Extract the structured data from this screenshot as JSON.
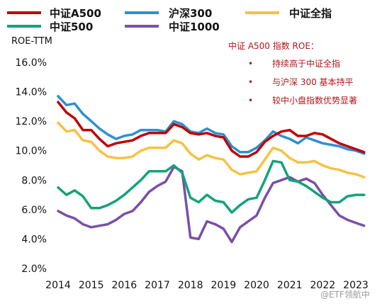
{
  "chart_data": {
    "type": "line",
    "ylabel": "ROE-TTM",
    "ylim": [
      2.0,
      16.0
    ],
    "yticks": [
      "2.0%",
      "4.0%",
      "6.0%",
      "8.0%",
      "10.0%",
      "12.0%",
      "14.0%",
      "16.0%"
    ],
    "ytick_values": [
      2,
      4,
      6,
      8,
      10,
      12,
      14,
      16
    ],
    "xlim": [
      2014,
      2023.35
    ],
    "xticks": [
      "2014",
      "2015",
      "2016",
      "2017",
      "2018",
      "2019",
      "2020",
      "2021",
      "2022",
      "2023"
    ],
    "xtick_values": [
      2014,
      2015,
      2016,
      2017,
      2018,
      2019,
      2020,
      2021,
      2022,
      2023
    ],
    "grid": false,
    "legend_position": "top",
    "series": [
      {
        "name": "中证A500",
        "color": "#c00000",
        "x": [
          2014.0,
          2014.25,
          2014.5,
          2014.75,
          2015.0,
          2015.25,
          2015.5,
          2015.75,
          2016.0,
          2016.25,
          2016.5,
          2016.75,
          2017.0,
          2017.25,
          2017.5,
          2017.75,
          2018.0,
          2018.25,
          2018.5,
          2018.75,
          2019.0,
          2019.25,
          2019.5,
          2019.75,
          2020.0,
          2020.25,
          2020.5,
          2020.75,
          2021.0,
          2021.25,
          2021.5,
          2021.75,
          2022.0,
          2022.25,
          2022.5,
          2022.75,
          2023.0,
          2023.25
        ],
        "y": [
          13.3,
          12.6,
          12.2,
          11.4,
          11.4,
          10.8,
          10.3,
          10.5,
          10.6,
          10.7,
          11.0,
          11.2,
          11.2,
          11.2,
          11.8,
          11.6,
          11.2,
          11.1,
          11.2,
          11.0,
          10.9,
          10.0,
          9.6,
          9.6,
          9.9,
          10.6,
          11.0,
          11.3,
          11.4,
          11.0,
          11.0,
          11.2,
          11.1,
          10.8,
          10.5,
          10.3,
          10.1,
          9.9
        ]
      },
      {
        "name": "沪深300",
        "color": "#2f8fd3",
        "x": [
          2014.0,
          2014.25,
          2014.5,
          2014.75,
          2015.0,
          2015.25,
          2015.5,
          2015.75,
          2016.0,
          2016.25,
          2016.5,
          2016.75,
          2017.0,
          2017.25,
          2017.5,
          2017.75,
          2018.0,
          2018.25,
          2018.5,
          2018.75,
          2019.0,
          2019.25,
          2019.5,
          2019.75,
          2020.0,
          2020.25,
          2020.5,
          2020.75,
          2021.0,
          2021.25,
          2021.5,
          2021.75,
          2022.0,
          2022.25,
          2022.5,
          2022.75,
          2023.0,
          2023.25
        ],
        "y": [
          13.7,
          13.1,
          13.2,
          12.5,
          12.0,
          11.5,
          11.1,
          10.8,
          11.0,
          11.1,
          11.4,
          11.4,
          11.4,
          11.3,
          12.0,
          11.8,
          11.3,
          11.2,
          11.5,
          11.2,
          11.1,
          10.3,
          9.9,
          9.9,
          10.2,
          10.7,
          11.3,
          11.0,
          10.8,
          10.5,
          10.9,
          10.7,
          10.5,
          10.4,
          10.3,
          10.1,
          10.0,
          9.8
        ]
      },
      {
        "name": "中证全指",
        "color": "#f5c242",
        "x": [
          2014.0,
          2014.25,
          2014.5,
          2014.75,
          2015.0,
          2015.25,
          2015.5,
          2015.75,
          2016.0,
          2016.25,
          2016.5,
          2016.75,
          2017.0,
          2017.25,
          2017.5,
          2017.75,
          2018.0,
          2018.25,
          2018.5,
          2018.75,
          2019.0,
          2019.25,
          2019.5,
          2019.75,
          2020.0,
          2020.25,
          2020.5,
          2020.75,
          2021.0,
          2021.25,
          2021.5,
          2021.75,
          2022.0,
          2022.25,
          2022.5,
          2022.75,
          2023.0,
          2023.25
        ],
        "y": [
          11.9,
          11.3,
          11.4,
          10.7,
          10.6,
          10.0,
          9.6,
          9.5,
          9.5,
          9.6,
          10.0,
          10.2,
          10.2,
          10.2,
          10.7,
          10.5,
          9.8,
          9.4,
          9.7,
          9.5,
          9.4,
          8.7,
          8.4,
          8.5,
          8.6,
          9.4,
          10.2,
          10.0,
          9.5,
          9.2,
          9.2,
          9.3,
          9.0,
          8.8,
          8.7,
          8.5,
          8.4,
          8.2
        ]
      },
      {
        "name": "中证500",
        "color": "#14a27a",
        "x": [
          2014.0,
          2014.25,
          2014.5,
          2014.75,
          2015.0,
          2015.25,
          2015.5,
          2015.75,
          2016.0,
          2016.25,
          2016.5,
          2016.75,
          2017.0,
          2017.25,
          2017.5,
          2017.75,
          2018.0,
          2018.25,
          2018.5,
          2018.75,
          2019.0,
          2019.25,
          2019.5,
          2019.75,
          2020.0,
          2020.25,
          2020.5,
          2020.75,
          2021.0,
          2021.25,
          2021.5,
          2021.75,
          2022.0,
          2022.25,
          2022.5,
          2022.75,
          2023.0,
          2023.25
        ],
        "y": [
          7.5,
          7.0,
          7.3,
          6.9,
          6.1,
          6.1,
          6.3,
          6.6,
          7.0,
          7.5,
          8.0,
          8.6,
          8.6,
          8.6,
          9.0,
          8.5,
          6.8,
          6.5,
          7.0,
          6.6,
          6.5,
          5.8,
          6.3,
          6.7,
          6.8,
          8.0,
          9.3,
          9.2,
          8.0,
          7.9,
          7.6,
          7.2,
          6.8,
          6.5,
          6.5,
          6.9,
          7.0,
          7.0
        ]
      },
      {
        "name": "中证1000",
        "color": "#7b4fa6",
        "x": [
          2014.0,
          2014.25,
          2014.5,
          2014.75,
          2015.0,
          2015.25,
          2015.5,
          2015.75,
          2016.0,
          2016.25,
          2016.5,
          2016.75,
          2017.0,
          2017.25,
          2017.5,
          2017.75,
          2018.0,
          2018.25,
          2018.5,
          2018.75,
          2019.0,
          2019.25,
          2019.5,
          2019.75,
          2020.0,
          2020.25,
          2020.5,
          2020.75,
          2021.0,
          2021.25,
          2021.5,
          2021.75,
          2022.0,
          2022.25,
          2022.5,
          2022.75,
          2023.0,
          2023.25
        ],
        "y": [
          5.9,
          5.6,
          5.4,
          5.0,
          4.8,
          4.9,
          5.0,
          5.3,
          5.7,
          5.9,
          6.5,
          7.2,
          7.6,
          7.9,
          8.9,
          8.6,
          4.1,
          4.0,
          5.2,
          5.0,
          4.7,
          3.8,
          4.8,
          5.2,
          5.6,
          6.8,
          7.8,
          8.0,
          8.2,
          7.9,
          8.1,
          7.8,
          7.0,
          6.3,
          5.6,
          5.3,
          5.1,
          4.9
        ]
      }
    ],
    "annotation": {
      "title": "中证 A500 指数 ROE：",
      "bullet": "•",
      "items": [
        "持续高于中证全指",
        "与沪深 300 基本持平",
        "较中小盘指数优势显著"
      ],
      "color": "#b3141a"
    }
  },
  "watermark": "@ETF领航中"
}
